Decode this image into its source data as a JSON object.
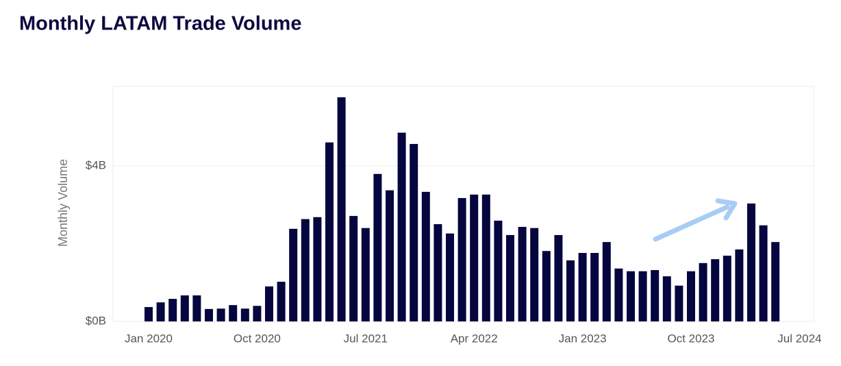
{
  "chart_data": {
    "type": "bar",
    "title": "Monthly LATAM Trade Volume",
    "y_label": "Monthly Volume",
    "categories": [
      "Jan 2020",
      null,
      null,
      null,
      null,
      null,
      null,
      null,
      null,
      "Oct 2020",
      null,
      null,
      null,
      null,
      null,
      null,
      null,
      null,
      "Jul 2021",
      null,
      null,
      null,
      null,
      null,
      null,
      null,
      null,
      "Apr 2022",
      null,
      null,
      null,
      null,
      null,
      null,
      null,
      null,
      "Jan 2023",
      null,
      null,
      null,
      null,
      null,
      null,
      null,
      null,
      "Oct 2023",
      null,
      null,
      null,
      null,
      null,
      null,
      null,
      null,
      "Jul 2024"
    ],
    "values": [
      0.37,
      0.49,
      0.58,
      0.67,
      0.67,
      0.32,
      0.33,
      0.42,
      0.33,
      0.4,
      0.9,
      1.02,
      2.38,
      2.63,
      2.68,
      4.6,
      5.76,
      2.71,
      2.4,
      3.79,
      3.37,
      4.85,
      4.56,
      3.33,
      2.5,
      2.26,
      3.17,
      3.26,
      3.26,
      2.59,
      2.22,
      2.43,
      2.4,
      1.81,
      2.22,
      1.57,
      1.76,
      1.76,
      2.04,
      1.36,
      1.29,
      1.29,
      1.32,
      1.16,
      0.92,
      1.29,
      1.5,
      1.6,
      1.69,
      1.85,
      3.03,
      2.47,
      2.04,
      null,
      null
    ],
    "color": "#05053f",
    "ylim": [
      0,
      6.04
    ],
    "yticks": [
      {
        "value": 0,
        "label": "$0B"
      },
      {
        "value": 4,
        "label": "$4B"
      }
    ],
    "grid": true
  }
}
